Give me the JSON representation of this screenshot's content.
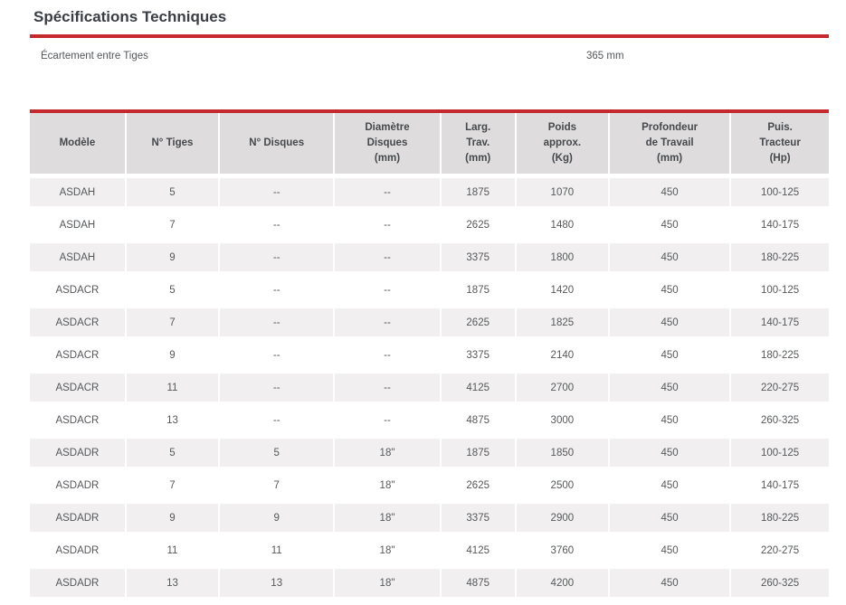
{
  "page": {
    "title": "Spécifications Techniques"
  },
  "spacing": {
    "label": "Écartement entre Tiges",
    "value": "365 mm"
  },
  "spec_table": {
    "headers": [
      {
        "lines": [
          "Modèle"
        ]
      },
      {
        "lines": [
          "N° Tiges"
        ]
      },
      {
        "lines": [
          "N° Disques"
        ]
      },
      {
        "lines": [
          "Diamètre",
          "Disques",
          "(mm)"
        ]
      },
      {
        "lines": [
          "Larg.",
          "Trav.",
          "(mm)"
        ]
      },
      {
        "lines": [
          "Poids",
          "approx.",
          "(Kg)"
        ]
      },
      {
        "lines": [
          "Profondeur",
          "de Travail",
          "(mm)"
        ]
      },
      {
        "lines": [
          "Puis.",
          "Tracteur",
          "(Hp)"
        ]
      }
    ],
    "col_widths_pct": [
      12.1,
      11.7,
      14.4,
      13.3,
      9.4,
      11.7,
      15.2,
      12.2
    ],
    "rows": [
      [
        "ASDAH",
        "5",
        "--",
        "--",
        "1875",
        "1070",
        "450",
        "100-125"
      ],
      [
        "ASDAH",
        "7",
        "--",
        "--",
        "2625",
        "1480",
        "450",
        "140-175"
      ],
      [
        "ASDAH",
        "9",
        "--",
        "--",
        "3375",
        "1800",
        "450",
        "180-225"
      ],
      [
        "ASDACR",
        "5",
        "--",
        "--",
        "1875",
        "1420",
        "450",
        "100-125"
      ],
      [
        "ASDACR",
        "7",
        "--",
        "--",
        "2625",
        "1825",
        "450",
        "140-175"
      ],
      [
        "ASDACR",
        "9",
        "--",
        "--",
        "3375",
        "2140",
        "450",
        "180-225"
      ],
      [
        "ASDACR",
        "11",
        "--",
        "--",
        "4125",
        "2700",
        "450",
        "220-275"
      ],
      [
        "ASDACR",
        "13",
        "--",
        "--",
        "4875",
        "3000",
        "450",
        "260-325"
      ],
      [
        "ASDADR",
        "5",
        "5",
        "18\"",
        "1875",
        "1850",
        "450",
        "100-125"
      ],
      [
        "ASDADR",
        "7",
        "7",
        "18\"",
        "2625",
        "2500",
        "450",
        "140-175"
      ],
      [
        "ASDADR",
        "9",
        "9",
        "18\"",
        "3375",
        "2900",
        "450",
        "180-225"
      ],
      [
        "ASDADR",
        "11",
        "11",
        "18\"",
        "4125",
        "3760",
        "450",
        "220-275"
      ],
      [
        "ASDADR",
        "13",
        "13",
        "18\"",
        "4875",
        "4200",
        "450",
        "260-325"
      ]
    ]
  },
  "colors": {
    "accent_red": "#c4292e",
    "header_bg": "#dedcdc",
    "stripe_bg": "#f1efef",
    "title_text": "#3a3e45",
    "cell_text": "#55585b"
  }
}
